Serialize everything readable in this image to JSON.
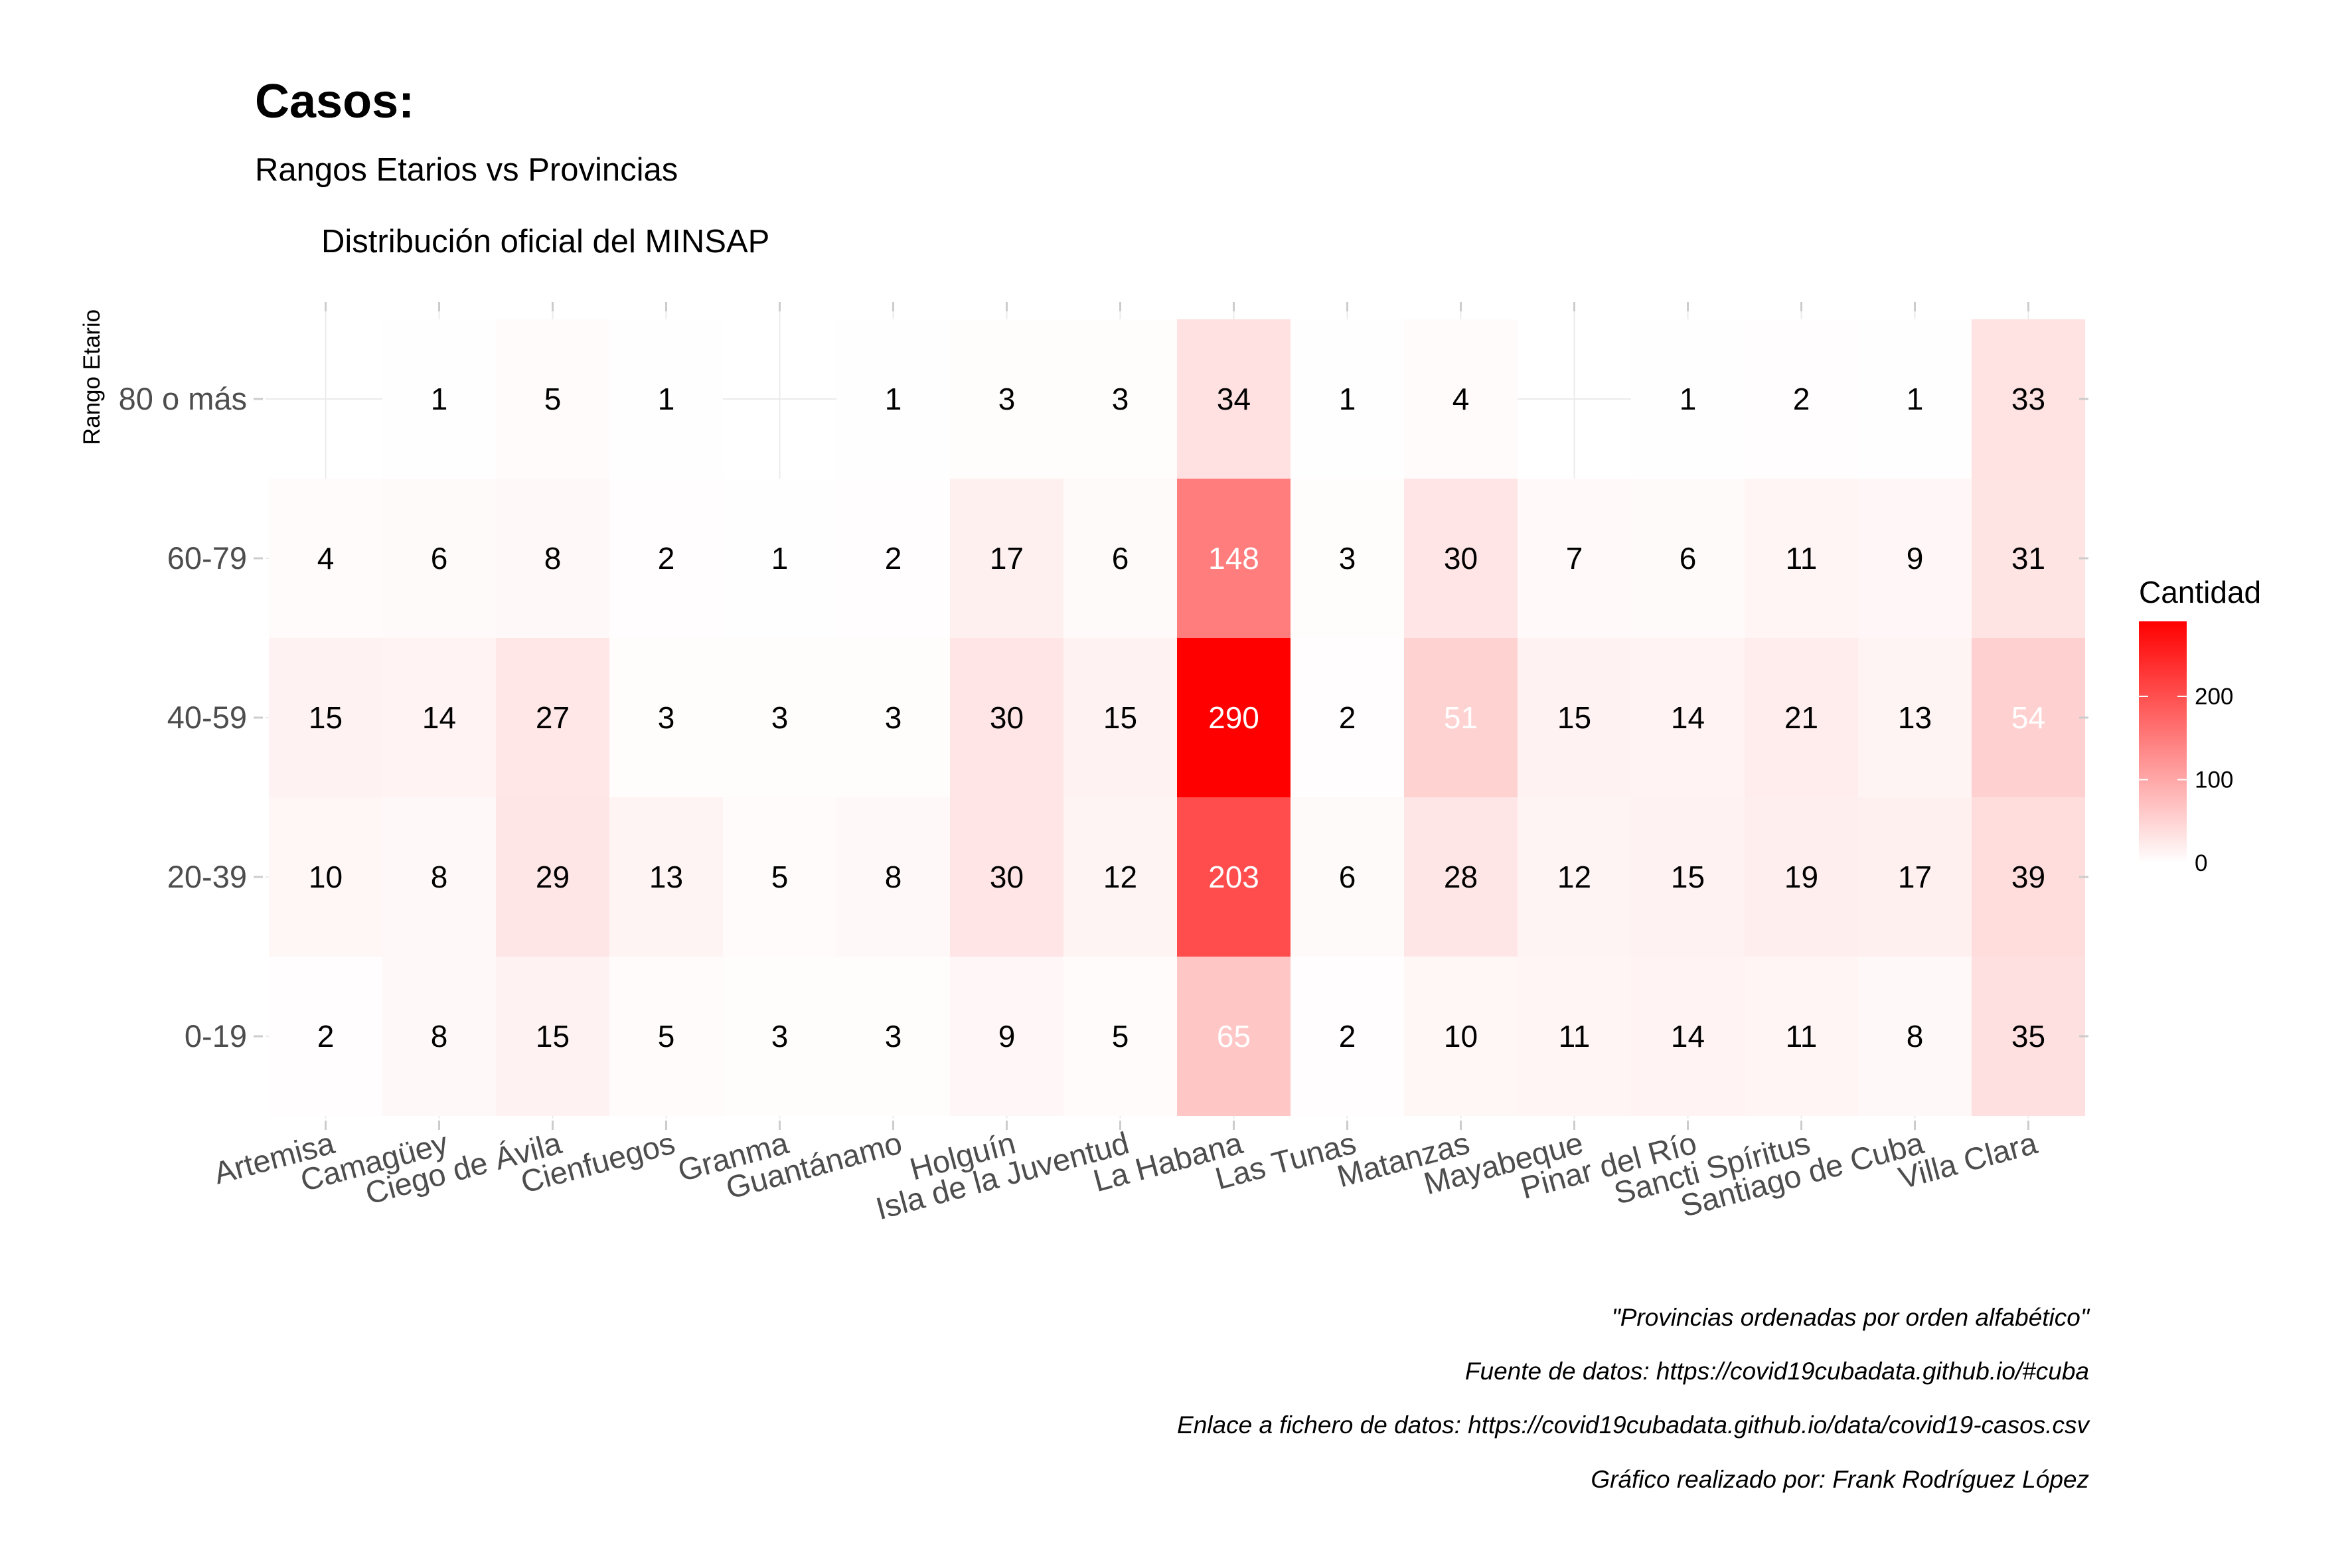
{
  "chart_data": {
    "type": "heatmap",
    "title": "Casos:",
    "subtitle": "Rangos Etarios vs Provincias",
    "tag": "Distribución oficial del MINSAP",
    "xlabel": "",
    "ylabel": "Rango Etario",
    "x_categories": [
      "Artemisa",
      "Camagüey",
      "Ciego de Ávila",
      "Cienfuegos",
      "Granma",
      "Guantánamo",
      "Holguín",
      "Isla de la Juventud",
      "La Habana",
      "Las Tunas",
      "Matanzas",
      "Mayabeque",
      "Pinar del Río",
      "Sancti Spíritus",
      "Santiago de Cuba",
      "Villa Clara"
    ],
    "y_categories": [
      "0-19",
      "20-39",
      "40-59",
      "60-79",
      "80 o más"
    ],
    "values": {
      "80 o más": [
        null,
        1,
        5,
        1,
        null,
        1,
        3,
        3,
        34,
        1,
        4,
        null,
        1,
        2,
        1,
        33
      ],
      "60-79": [
        4,
        6,
        8,
        2,
        1,
        2,
        17,
        6,
        148,
        3,
        30,
        7,
        6,
        11,
        9,
        31
      ],
      "40-59": [
        15,
        14,
        27,
        3,
        3,
        3,
        30,
        15,
        290,
        2,
        51,
        15,
        14,
        21,
        13,
        54
      ],
      "20-39": [
        10,
        8,
        29,
        13,
        5,
        8,
        30,
        12,
        203,
        6,
        28,
        12,
        15,
        19,
        17,
        39
      ],
      "0-19": [
        2,
        8,
        15,
        5,
        3,
        3,
        9,
        5,
        65,
        2,
        10,
        11,
        14,
        11,
        8,
        35
      ]
    },
    "color_scale": {
      "low": "#ffffff",
      "high": "#ff0000",
      "min": 0,
      "max": 290
    },
    "legend": {
      "title": "Cantidad",
      "ticks": [
        0,
        100,
        200
      ],
      "position": "right"
    },
    "captions": [
      "\"Provincias ordenadas por orden alfabético\"",
      "Fuente de datos: https://covid19cubadata.github.io/#cuba",
      "Enlace a fichero de datos: https://covid19cubadata.github.io/data/covid19-casos.csv",
      "Gráfico realizado por: Frank Rodríguez López"
    ]
  }
}
